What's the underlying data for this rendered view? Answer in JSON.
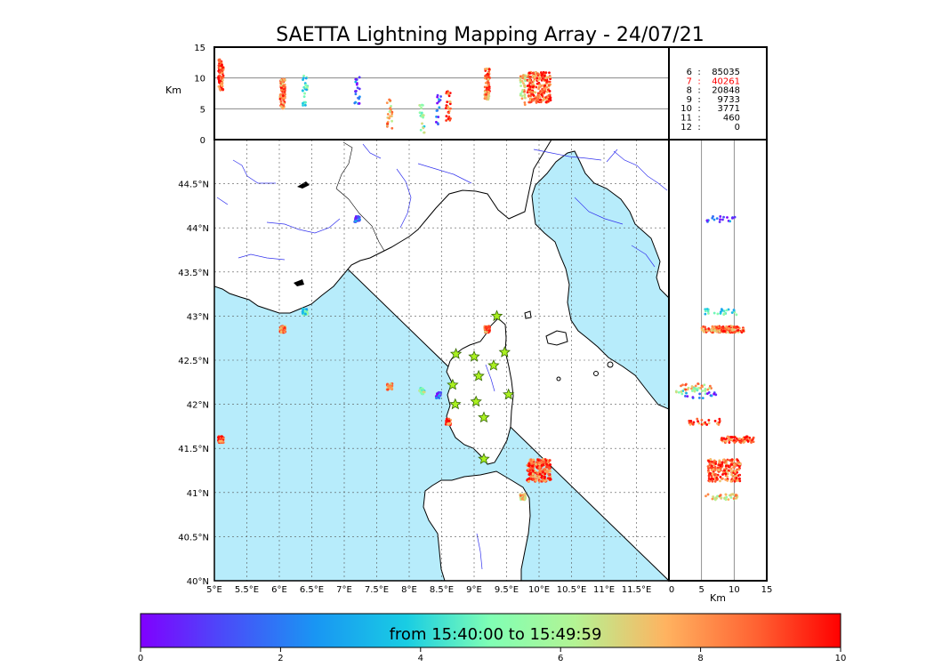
{
  "title": "SAETTA Lightning Mapping Array - 24/07/21",
  "colorbar": {
    "label": "from 15:40:00 to 15:49:59",
    "ticks": [
      "0",
      "2",
      "4",
      "6",
      "8",
      "10"
    ]
  },
  "colors": {
    "sea": "#b7ecfb",
    "river": "#3333ee",
    "grid": "#555555",
    "station_fill": "#aaf020",
    "station_edge": "#336600",
    "highlight": "#ff0000"
  },
  "chart_data": {
    "type": "scatter",
    "subtype": "lightning-mapping-array",
    "map": {
      "lon_range": [
        5.0,
        12.0
      ],
      "lat_range": [
        40.0,
        45.0
      ],
      "lon_ticks": [
        "5°E",
        "5.5°E",
        "6°E",
        "6.5°E",
        "7°E",
        "7.5°E",
        "8°E",
        "8.5°E",
        "9°E",
        "9.5°E",
        "10°E",
        "10.5°E",
        "11°E",
        "11.5°E"
      ],
      "lat_ticks": [
        "40°N",
        "40.5°N",
        "41°N",
        "41.5°N",
        "42°N",
        "42.5°N",
        "43°N",
        "43.5°N",
        "44°N",
        "44.5°N"
      ]
    },
    "altitude_panel": {
      "ylabel": "Km",
      "ylim": [
        0,
        15
      ],
      "yticks": [
        "0",
        "5",
        "10",
        "15"
      ]
    },
    "side_panel": {
      "xlabel": "Km",
      "xlim": [
        0,
        15
      ],
      "xticks": [
        "0",
        "5",
        "10",
        "15"
      ]
    },
    "counts_by_station_number": [
      {
        "stations": "6",
        "count": "85035"
      },
      {
        "stations": "7",
        "count": "40261",
        "highlight": true
      },
      {
        "stations": "8",
        "count": "20848"
      },
      {
        "stations": "9",
        "count": "9733"
      },
      {
        "stations": "10",
        "count": "3771"
      },
      {
        "stations": "11",
        "count": "460"
      },
      {
        "stations": "12",
        "count": "0"
      }
    ],
    "stations": [
      {
        "lon": 9.35,
        "lat": 43.0
      },
      {
        "lon": 8.72,
        "lat": 42.57
      },
      {
        "lon": 9.0,
        "lat": 42.54
      },
      {
        "lon": 9.47,
        "lat": 42.59
      },
      {
        "lon": 9.3,
        "lat": 42.44
      },
      {
        "lon": 9.07,
        "lat": 42.32
      },
      {
        "lon": 8.67,
        "lat": 42.22
      },
      {
        "lon": 9.53,
        "lat": 42.11
      },
      {
        "lon": 8.71,
        "lat": 42.0
      },
      {
        "lon": 9.03,
        "lat": 42.03
      },
      {
        "lon": 9.15,
        "lat": 41.85
      },
      {
        "lon": 9.15,
        "lat": 41.38
      }
    ],
    "clusters": [
      {
        "lon": 5.1,
        "lat": 41.6,
        "alt": 10.5,
        "t": 9.0,
        "points": 90
      },
      {
        "lon": 6.05,
        "lat": 42.85,
        "alt": 7.5,
        "t": 8.5,
        "points": 80
      },
      {
        "lon": 6.4,
        "lat": 43.05,
        "alt": 8.0,
        "t": 4.5,
        "points": 25
      },
      {
        "lon": 7.2,
        "lat": 44.1,
        "alt": 8.0,
        "t": 1.5,
        "points": 20
      },
      {
        "lon": 7.7,
        "lat": 42.2,
        "alt": 4.0,
        "t": 7.5,
        "points": 25
      },
      {
        "lon": 8.2,
        "lat": 42.15,
        "alt": 3.5,
        "t": 5.5,
        "points": 20
      },
      {
        "lon": 8.45,
        "lat": 42.1,
        "alt": 5.0,
        "t": 1.5,
        "points": 15
      },
      {
        "lon": 8.6,
        "lat": 41.8,
        "alt": 5.5,
        "t": 9.0,
        "points": 30
      },
      {
        "lon": 9.2,
        "lat": 42.85,
        "alt": 9.0,
        "t": 8.5,
        "points": 80
      },
      {
        "lon": 10.0,
        "lat": 41.25,
        "alt": 8.5,
        "t": 8.8,
        "points": 220
      },
      {
        "lon": 9.75,
        "lat": 40.95,
        "alt": 8.0,
        "t": 7.0,
        "points": 40
      }
    ]
  }
}
